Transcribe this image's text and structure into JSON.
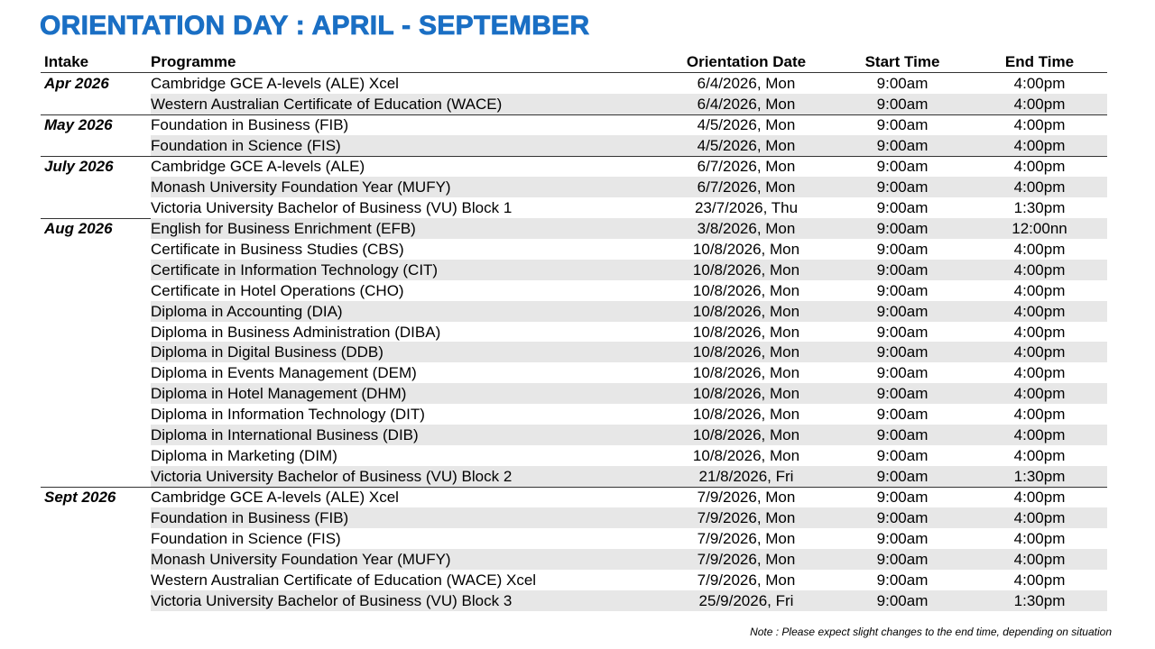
{
  "title": "ORIENTATION DAY : APRIL - SEPTEMBER",
  "table": {
    "columns": [
      "Intake",
      "Programme",
      "Orientation Date",
      "Start Time",
      "End Time"
    ],
    "groups": [
      {
        "intake": "Apr 2026",
        "rows": [
          [
            "Cambridge GCE A-levels (ALE) Xcel",
            "6/4/2026, Mon",
            "9:00am",
            "4:00pm"
          ],
          [
            "Western Australian Certificate of Education (WACE)",
            "6/4/2026, Mon",
            "9:00am",
            "4:00pm"
          ]
        ]
      },
      {
        "intake": "May 2026",
        "rows": [
          [
            "Foundation in Business (FIB)",
            "4/5/2026, Mon",
            "9:00am",
            "4:00pm"
          ],
          [
            "Foundation in Science (FIS)",
            "4/5/2026, Mon",
            "9:00am",
            "4:00pm"
          ]
        ]
      },
      {
        "intake": "July 2026",
        "rows": [
          [
            "Cambridge GCE A-levels (ALE)",
            "6/7/2026, Mon",
            "9:00am",
            "4:00pm"
          ],
          [
            "Monash University Foundation Year (MUFY)",
            "6/7/2026, Mon",
            "9:00am",
            "4:00pm"
          ],
          [
            "Victoria University Bachelor of Business (VU) Block 1",
            "23/7/2026, Thu",
            "9:00am",
            "1:30pm"
          ]
        ]
      },
      {
        "intake": "Aug 2026",
        "rows": [
          [
            "English for Business Enrichment (EFB)",
            "3/8/2026, Mon",
            "9:00am",
            "12:00nn"
          ],
          [
            "Certificate in Business Studies (CBS)",
            "10/8/2026, Mon",
            "9:00am",
            "4:00pm"
          ],
          [
            "Certificate in Information Technology (CIT)",
            "10/8/2026, Mon",
            "9:00am",
            "4:00pm"
          ],
          [
            "Certificate in Hotel Operations (CHO)",
            "10/8/2026, Mon",
            "9:00am",
            "4:00pm"
          ],
          [
            "Diploma in Accounting (DIA)",
            "10/8/2026, Mon",
            "9:00am",
            "4:00pm"
          ],
          [
            "Diploma in Business Administration (DIBA)",
            "10/8/2026, Mon",
            "9:00am",
            "4:00pm"
          ],
          [
            "Diploma in Digital Business (DDB)",
            "10/8/2026, Mon",
            "9:00am",
            "4:00pm"
          ],
          [
            "Diploma in Events Management (DEM)",
            "10/8/2026, Mon",
            "9:00am",
            "4:00pm"
          ],
          [
            "Diploma in Hotel Management (DHM)",
            "10/8/2026, Mon",
            "9:00am",
            "4:00pm"
          ],
          [
            "Diploma in Information Technology (DIT)",
            "10/8/2026, Mon",
            "9:00am",
            "4:00pm"
          ],
          [
            "Diploma in International Business (DIB)",
            "10/8/2026, Mon",
            "9:00am",
            "4:00pm"
          ],
          [
            "Diploma in Marketing (DIM)",
            "10/8/2026, Mon",
            "9:00am",
            "4:00pm"
          ],
          [
            "Victoria University Bachelor of Business (VU) Block 2",
            "21/8/2026, Fri",
            "9:00am",
            "1:30pm"
          ]
        ]
      },
      {
        "intake": "Sept 2026",
        "rows": [
          [
            "Cambridge GCE A-levels (ALE) Xcel",
            "7/9/2026, Mon",
            "9:00am",
            "4:00pm"
          ],
          [
            "Foundation in Business (FIB)",
            "7/9/2026, Mon",
            "9:00am",
            "4:00pm"
          ],
          [
            "Foundation in Science (FIS)",
            "7/9/2026, Mon",
            "9:00am",
            "4:00pm"
          ],
          [
            "Monash University Foundation Year (MUFY)",
            "7/9/2026, Mon",
            "9:00am",
            "4:00pm"
          ],
          [
            "Western Australian Certificate of Education (WACE) Xcel",
            "7/9/2026, Mon",
            "9:00am",
            "4:00pm"
          ],
          [
            "Victoria University Bachelor of Business (VU) Block 3",
            "25/9/2026, Fri",
            "9:00am",
            "1:30pm"
          ]
        ]
      }
    ]
  },
  "note": "Note : Please expect slight changes to the end time, depending on situation"
}
